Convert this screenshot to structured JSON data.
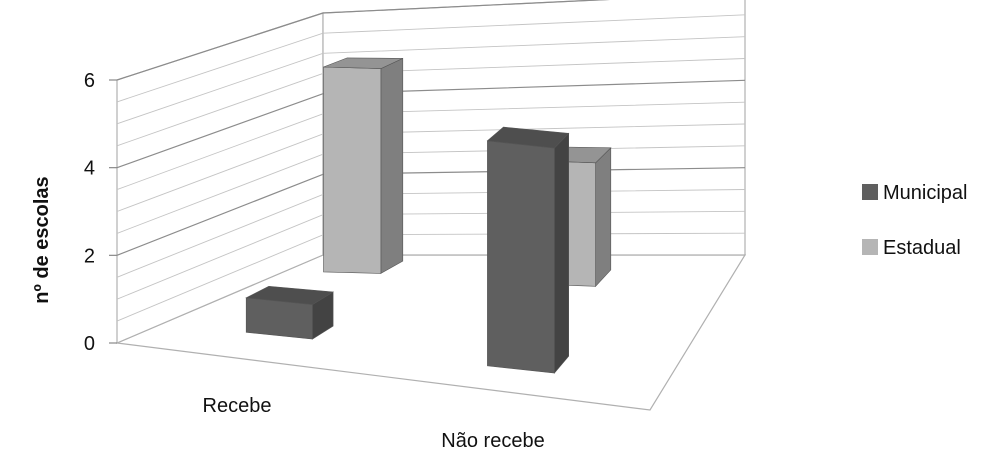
{
  "chart_data": {
    "type": "bar",
    "style": "3d-column",
    "categories": [
      "Recebe",
      "Não recebe"
    ],
    "series": [
      {
        "name": "Municipal",
        "values": [
          0.8,
          5.2
        ],
        "color": "#5f5f5f"
      },
      {
        "name": "Estadual",
        "values": [
          5.0,
          3.0
        ],
        "color": "#b5b5b5"
      }
    ],
    "ylabel": "nº de escolas",
    "xlabel": "",
    "ylim": [
      0,
      6
    ],
    "yticks": [
      0,
      2,
      4,
      6
    ],
    "grid": true,
    "legend_position": "right"
  }
}
